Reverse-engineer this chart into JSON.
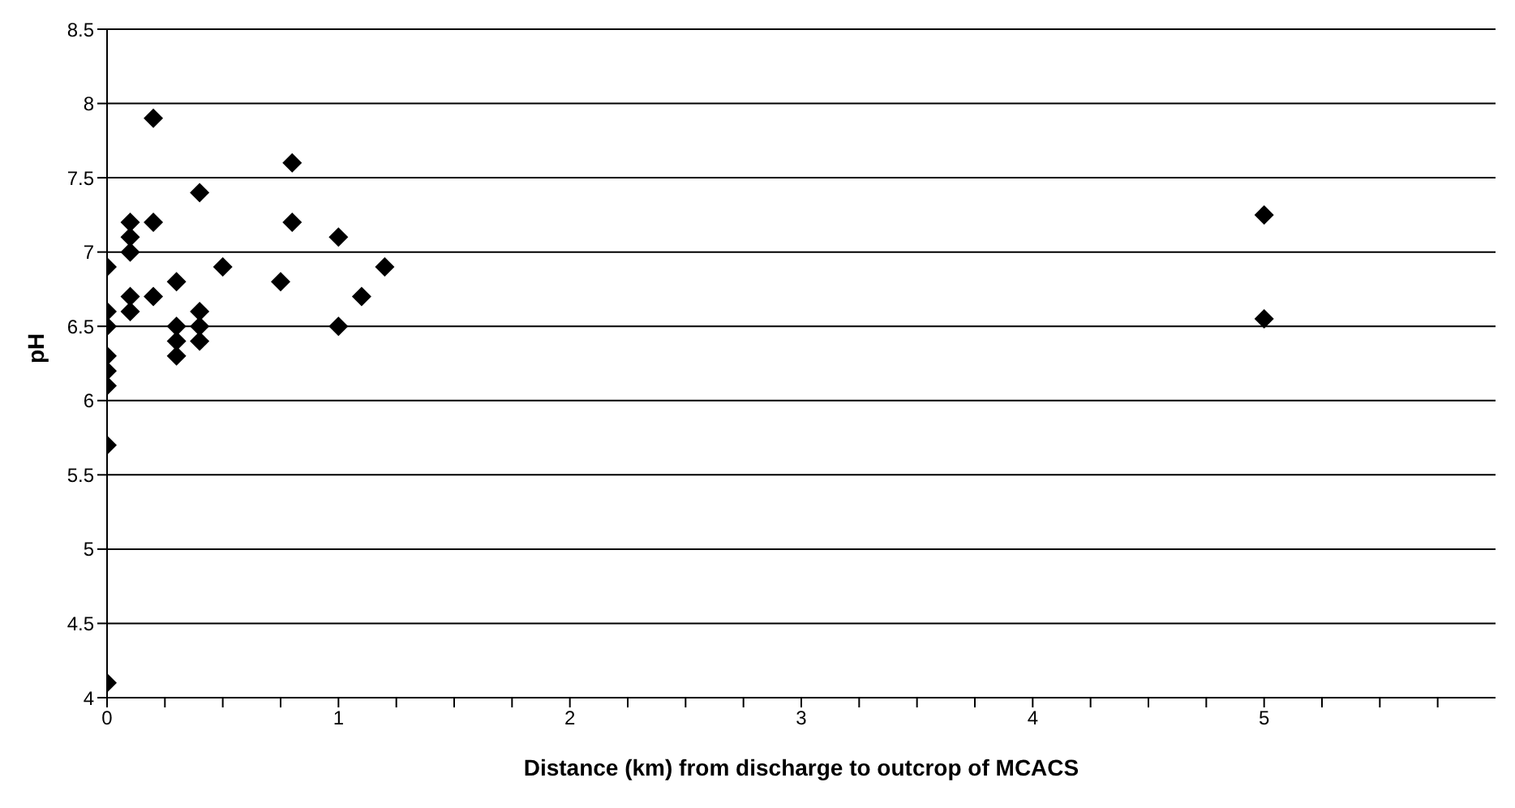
{
  "chart_data": {
    "type": "scatter",
    "xlabel": "Distance (km) from discharge to outcrop of MCACS",
    "ylabel": "pH",
    "x": [
      0,
      0,
      0,
      0,
      0,
      0,
      0,
      0,
      0.1,
      0.1,
      0.1,
      0.1,
      0.1,
      0.2,
      0.2,
      0.2,
      0.3,
      0.3,
      0.3,
      0.3,
      0.4,
      0.4,
      0.4,
      0.4,
      0.5,
      0.75,
      0.8,
      0.8,
      1,
      1,
      1.1,
      1.2,
      5,
      5
    ],
    "series": [
      {
        "color": "#000000",
        "values": [
          6.9,
          6.6,
          6.5,
          6.3,
          6.2,
          6.1,
          5.7,
          4.1,
          7.2,
          7.1,
          7.0,
          6.7,
          6.6,
          7.9,
          7.2,
          6.7,
          6.8,
          6.5,
          6.4,
          6.3,
          7.4,
          6.6,
          6.5,
          6.4,
          6.9,
          6.8,
          7.6,
          7.2,
          7.1,
          6.5,
          6.7,
          6.9,
          7.25,
          6.55
        ]
      }
    ],
    "xlim": [
      0,
      6
    ],
    "xticks": [
      0,
      {
        "value": 0.25,
        "label": null
      },
      {
        "value": 0.5,
        "label": null
      },
      {
        "value": 0.75,
        "label": null
      },
      1,
      {
        "value": 1.25,
        "label": null
      },
      {
        "value": 1.5,
        "label": null
      },
      {
        "value": 1.75,
        "label": null
      },
      2,
      {
        "value": 2.25,
        "label": null
      },
      {
        "value": 2.5,
        "label": null
      },
      {
        "value": 2.75,
        "label": null
      },
      3,
      {
        "value": 3.25,
        "label": null
      },
      {
        "value": 3.5,
        "label": null
      },
      {
        "value": 3.75,
        "label": null
      },
      4,
      {
        "value": 4.25,
        "label": null
      },
      {
        "value": 4.5,
        "label": null
      },
      {
        "value": 4.75,
        "label": null
      },
      5,
      {
        "value": 5.25,
        "label": null
      },
      {
        "value": 5.5,
        "label": null
      },
      {
        "value": 5.75,
        "label": null
      }
    ],
    "ylim": [
      4,
      8.5
    ],
    "yticks": [
      4,
      4.5,
      5,
      5.5,
      6,
      6.5,
      7,
      7.5,
      8,
      8.5
    ],
    "grid": "y",
    "marker": "diamond",
    "legend": false
  }
}
